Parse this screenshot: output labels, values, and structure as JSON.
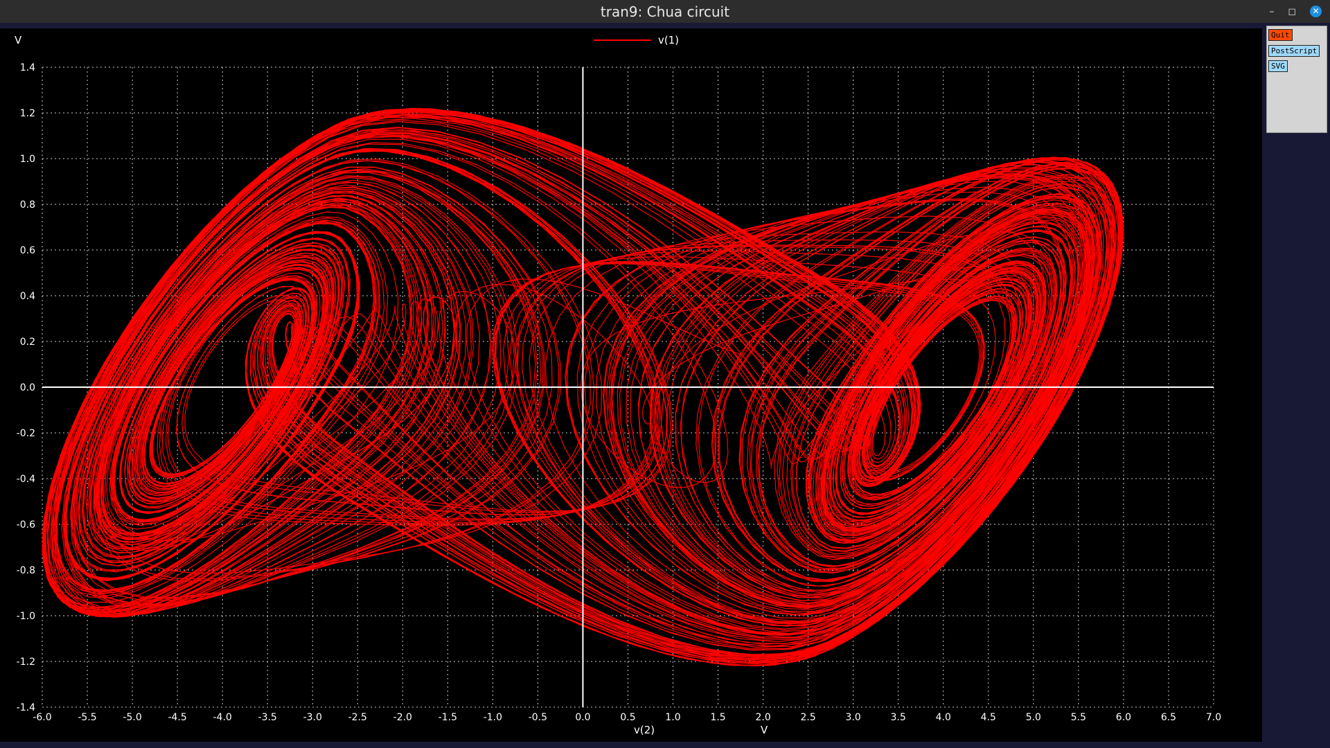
{
  "window": {
    "title": "tran9: Chua circuit"
  },
  "window_controls": {
    "minimize": "–",
    "maximize": "◻",
    "close": "✕"
  },
  "buttons": {
    "quit": "Quit",
    "postscript": "PostScript",
    "svg": "SVG"
  },
  "colors": {
    "trace": "#ff0000",
    "grid": "#ffffff",
    "background": "#000000",
    "quit_button": "#ff4a00",
    "export_button": "#9fd8f8"
  },
  "chart_data": {
    "type": "line",
    "title": "",
    "xlabel": "v(2)",
    "xunit": "V",
    "yunit": "V",
    "xlim": [
      -6.0,
      7.0
    ],
    "ylim": [
      -1.4,
      1.4
    ],
    "xticks": [
      "-6.0",
      "-5.5",
      "-5.0",
      "-4.5",
      "-4.0",
      "-3.5",
      "-3.0",
      "-2.5",
      "-2.0",
      "-1.5",
      "-1.0",
      "-0.5",
      "0.0",
      "0.5",
      "1.0",
      "1.5",
      "2.0",
      "2.5",
      "3.0",
      "3.5",
      "4.0",
      "4.5",
      "5.0",
      "5.5",
      "6.0",
      "6.5",
      "7.0"
    ],
    "yticks": [
      "1.4",
      "1.2",
      "1.0",
      "0.8",
      "0.6",
      "0.4",
      "0.2",
      "0.0",
      "-0.2",
      "-0.4",
      "-0.6",
      "-0.8",
      "-1.0",
      "-1.2",
      "-1.4"
    ],
    "grid": true,
    "legend_placement": "top-center",
    "series": [
      {
        "name": "v(1)",
        "description": "double-scroll chaotic attractor",
        "attractor": {
          "left_focus": [
            -3.1,
            0.05
          ],
          "right_focus": [
            3.1,
            -0.05
          ],
          "x_range": [
            -6.0,
            6.0
          ],
          "y_range": [
            -1.22,
            1.22
          ]
        }
      }
    ]
  }
}
